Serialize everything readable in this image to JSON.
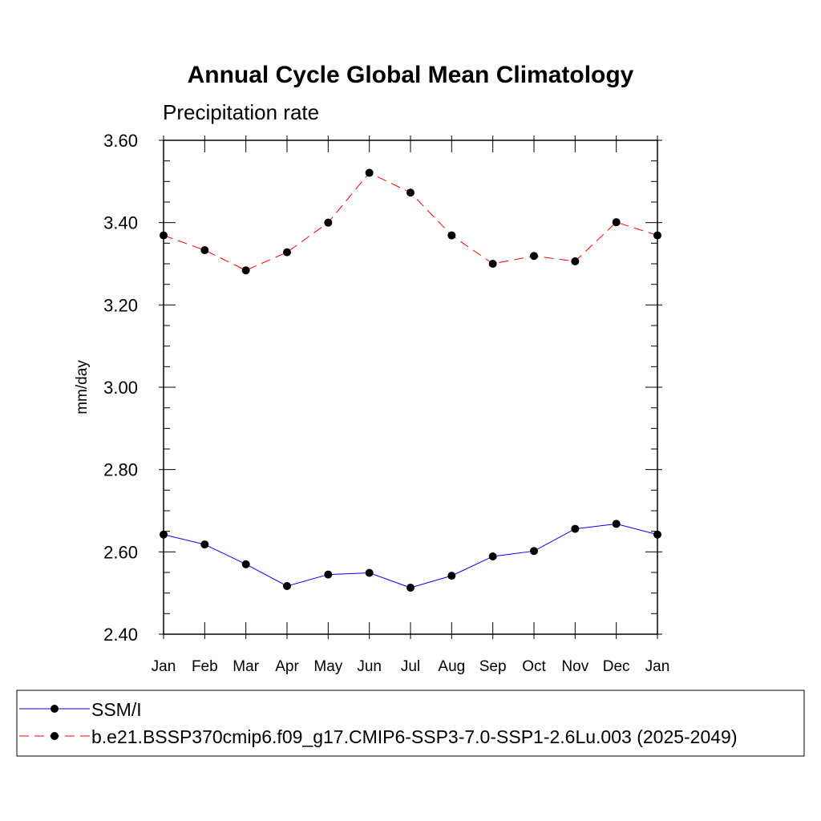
{
  "chart_data": {
    "type": "line",
    "title": "Annual Cycle Global Mean Climatology",
    "subtitle": "Precipitation rate",
    "xlabel": "",
    "ylabel": "mm/day",
    "categories": [
      "Jan",
      "Feb",
      "Mar",
      "Apr",
      "May",
      "Jun",
      "Jul",
      "Aug",
      "Sep",
      "Oct",
      "Nov",
      "Dec",
      "Jan"
    ],
    "ylim": [
      2.4,
      3.6
    ],
    "yticks": [
      "2.40",
      "2.60",
      "2.80",
      "3.00",
      "3.20",
      "3.40",
      "3.60"
    ],
    "grid": false,
    "legend_position": "bottom",
    "series": [
      {
        "name": "SSM/I",
        "color": "#0000ff",
        "dash": "solid",
        "values": [
          2.642,
          2.618,
          2.57,
          2.517,
          2.545,
          2.549,
          2.513,
          2.542,
          2.589,
          2.602,
          2.656,
          2.668,
          2.642
        ]
      },
      {
        "name": "b.e21.BSSP370cmip6.f09_g17.CMIP6-SSP3-7.0-SSP1-2.6Lu.003 (2025-2049)",
        "color": "#ff0000",
        "dash": "dashed",
        "values": [
          3.369,
          3.333,
          3.284,
          3.328,
          3.4,
          3.521,
          3.473,
          3.369,
          3.3,
          3.319,
          3.306,
          3.401,
          3.369
        ]
      }
    ]
  }
}
